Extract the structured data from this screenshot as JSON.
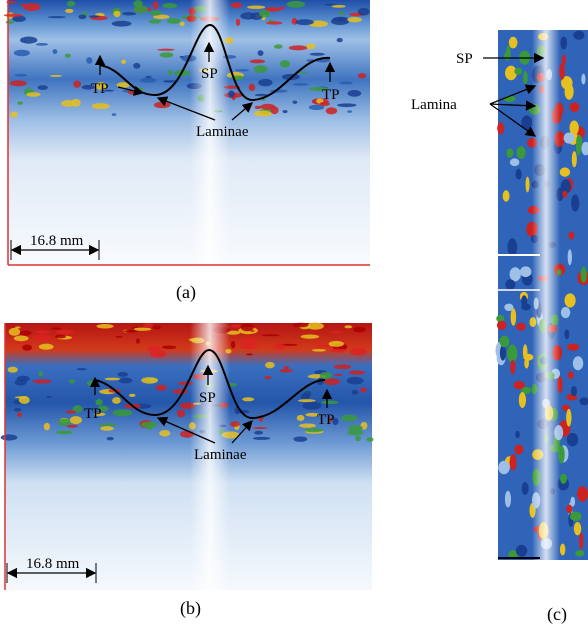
{
  "panels": [
    {
      "caption": "(a)",
      "tp_left": "TP",
      "sp": "SP",
      "tp_right": "TP",
      "laminae": "Laminae",
      "scale": "16.8 mm"
    },
    {
      "caption": "(b)",
      "tp_left": "TP",
      "sp": "SP",
      "tp_right": "TP",
      "laminae": "Laminae",
      "scale": "16.8 mm"
    },
    {
      "caption": "(c)",
      "sp": "SP",
      "lamina": "Lamina"
    }
  ]
}
